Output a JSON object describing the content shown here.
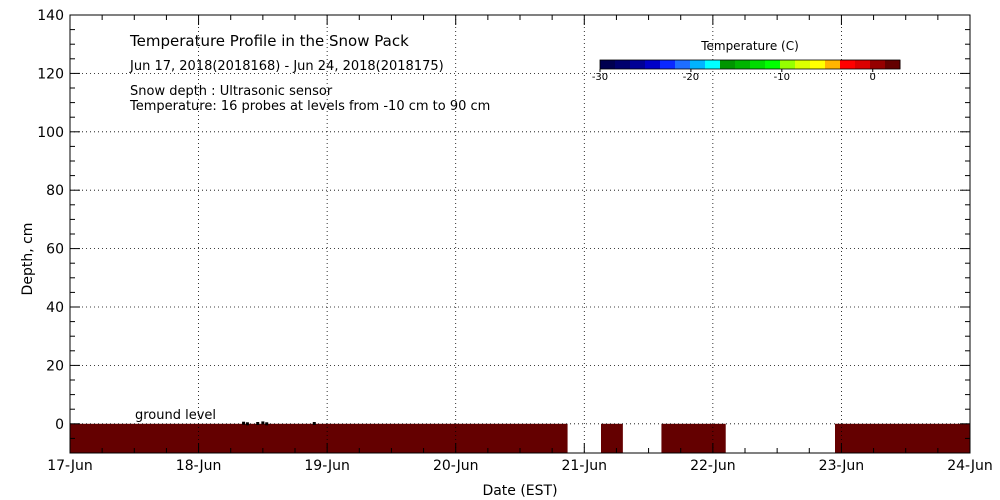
{
  "chart_data": {
    "type": "heatmap",
    "title": "Temperature Profile in the Snow Pack",
    "subtitle": "Jun 17, 2018(2018168) - Jun 24, 2018(2018175)",
    "annotations": [
      "Snow depth : Ultrasonic sensor",
      "Temperature: 16 probes at levels from -10 cm to 90 cm"
    ],
    "ground_label": "ground level",
    "xlabel": "Date (EST)",
    "ylabel": "Depth, cm",
    "x_ticks": [
      "17-Jun",
      "18-Jun",
      "19-Jun",
      "20-Jun",
      "21-Jun",
      "22-Jun",
      "23-Jun",
      "24-Jun"
    ],
    "xlim": [
      0,
      7
    ],
    "y_ticks": [
      0,
      20,
      40,
      60,
      80,
      100,
      120,
      140
    ],
    "ylim": [
      -10,
      140
    ],
    "grid": true,
    "colorbar": {
      "title": "Temperature (C)",
      "range": [
        -30,
        3
      ],
      "tick_values": [
        -30,
        -20,
        -10,
        0
      ],
      "tick_labels": [
        "-30",
        "-20",
        "-10",
        "0"
      ],
      "colors": [
        "#000050",
        "#00006e",
        "#000096",
        "#0000c8",
        "#0a28ff",
        "#1e6eff",
        "#00b4ff",
        "#00ffff",
        "#009600",
        "#00b400",
        "#00dc00",
        "#00ff00",
        "#96ff00",
        "#dcff00",
        "#ffff00",
        "#ffb400",
        "#ff0000",
        "#dc0000",
        "#960000",
        "#640000"
      ]
    },
    "temperature_band": {
      "depth_range": [
        -10,
        0
      ],
      "color": "#640000",
      "segments": [
        [
          0,
          3.87
        ],
        [
          4.13,
          4.3
        ],
        [
          4.6,
          5.1
        ],
        [
          5.95,
          7
        ]
      ]
    },
    "snow_depth_points": [
      {
        "x": 1.35,
        "y": 0.2
      },
      {
        "x": 1.38,
        "y": 0.0
      },
      {
        "x": 1.46,
        "y": 0.1
      },
      {
        "x": 1.5,
        "y": 0.3
      },
      {
        "x": 1.53,
        "y": 0.0
      },
      {
        "x": 1.9,
        "y": 0.1
      }
    ]
  }
}
